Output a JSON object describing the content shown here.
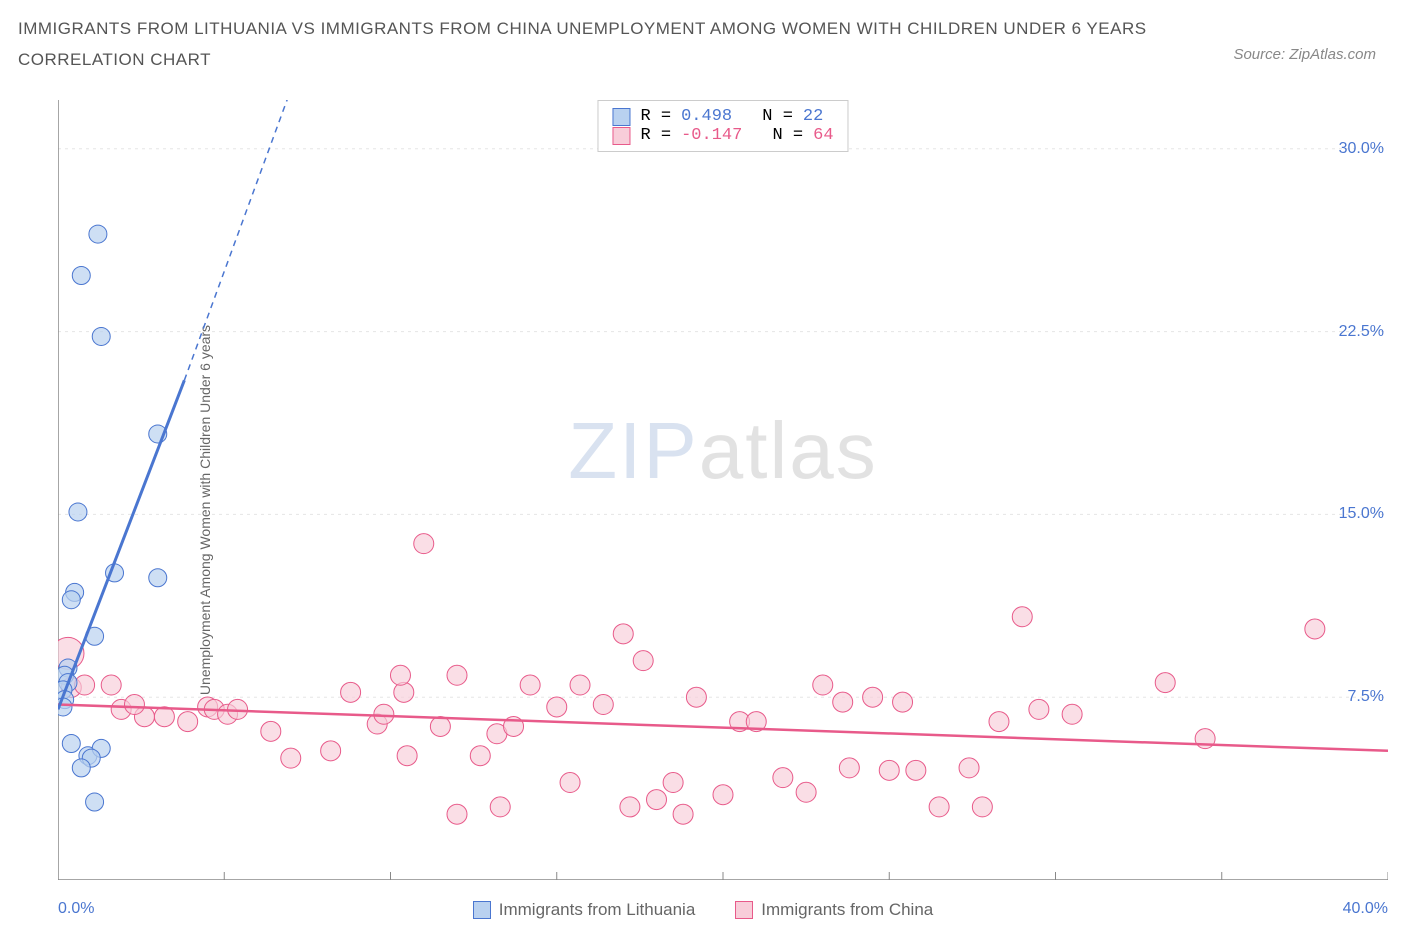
{
  "title_line1": "IMMIGRANTS FROM LITHUANIA VS IMMIGRANTS FROM CHINA UNEMPLOYMENT AMONG WOMEN WITH CHILDREN UNDER 6 YEARS",
  "title_line2": "CORRELATION CHART",
  "source_label": "Source: ZipAtlas.com",
  "y_axis_label": "Unemployment Among Women with Children Under 6 years",
  "watermark_zip": "ZIP",
  "watermark_atlas": "atlas",
  "colors": {
    "series_a_fill": "#b9d1f0",
    "series_a_stroke": "#4a76d0",
    "series_b_fill": "#f8cdd9",
    "series_b_stroke": "#e85a8a",
    "grid": "#e5e5e5",
    "axis": "#888888",
    "text": "#555555",
    "tick_text": "#4a76d0"
  },
  "axes": {
    "x_min": 0.0,
    "x_max": 40.0,
    "y_min": 0.0,
    "y_max": 32.0,
    "x_origin_label": "0.0%",
    "x_max_label": "40.0%",
    "x_ticks": [
      5,
      10,
      15,
      20,
      25,
      30,
      35,
      40
    ],
    "y_ticks": [
      {
        "v": 7.5,
        "label": "7.5%"
      },
      {
        "v": 15.0,
        "label": "15.0%"
      },
      {
        "v": 22.5,
        "label": "22.5%"
      },
      {
        "v": 30.0,
        "label": "30.0%"
      }
    ]
  },
  "legend_top": {
    "rows": [
      {
        "swatch": "a",
        "r_label": "R =",
        "r_value": "0.498",
        "n_label": "N =",
        "n_value": "22"
      },
      {
        "swatch": "b",
        "r_label": "R =",
        "r_value": "-0.147",
        "n_label": "N =",
        "n_value": "64"
      }
    ]
  },
  "legend_bottom": {
    "items": [
      {
        "swatch": "a",
        "label": "Immigrants from Lithuania"
      },
      {
        "swatch": "b",
        "label": "Immigrants from China"
      }
    ]
  },
  "series_a": {
    "trend": {
      "x1": 0,
      "y1": 7.0,
      "x2": 3.8,
      "y2": 20.5,
      "dash_x2": 8.5,
      "dash_y2": 38.0
    },
    "points": [
      {
        "x": 1.2,
        "y": 26.5,
        "r": 9
      },
      {
        "x": 0.7,
        "y": 24.8,
        "r": 9
      },
      {
        "x": 1.3,
        "y": 22.3,
        "r": 9
      },
      {
        "x": 3.0,
        "y": 18.3,
        "r": 9
      },
      {
        "x": 0.6,
        "y": 15.1,
        "r": 9
      },
      {
        "x": 1.7,
        "y": 12.6,
        "r": 9
      },
      {
        "x": 3.0,
        "y": 12.4,
        "r": 9
      },
      {
        "x": 0.5,
        "y": 11.8,
        "r": 9
      },
      {
        "x": 0.4,
        "y": 11.5,
        "r": 9
      },
      {
        "x": 1.1,
        "y": 10.0,
        "r": 9
      },
      {
        "x": 0.3,
        "y": 8.7,
        "r": 9
      },
      {
        "x": 0.2,
        "y": 8.4,
        "r": 9
      },
      {
        "x": 0.3,
        "y": 8.1,
        "r": 9
      },
      {
        "x": 0.15,
        "y": 7.8,
        "r": 9
      },
      {
        "x": 0.2,
        "y": 7.4,
        "r": 9
      },
      {
        "x": 0.15,
        "y": 7.1,
        "r": 9
      },
      {
        "x": 0.4,
        "y": 5.6,
        "r": 9
      },
      {
        "x": 0.9,
        "y": 5.1,
        "r": 9
      },
      {
        "x": 1.3,
        "y": 5.4,
        "r": 9
      },
      {
        "x": 1.0,
        "y": 5.0,
        "r": 9
      },
      {
        "x": 0.7,
        "y": 4.6,
        "r": 9
      },
      {
        "x": 1.1,
        "y": 3.2,
        "r": 9
      }
    ]
  },
  "series_b": {
    "trend": {
      "x1": 0,
      "y1": 7.2,
      "x2": 40,
      "y2": 5.3
    },
    "points": [
      {
        "x": 0.3,
        "y": 9.3,
        "r": 16
      },
      {
        "x": 0.4,
        "y": 7.9,
        "r": 10
      },
      {
        "x": 0.8,
        "y": 8.0,
        "r": 10
      },
      {
        "x": 1.6,
        "y": 8.0,
        "r": 10
      },
      {
        "x": 1.9,
        "y": 7.0,
        "r": 10
      },
      {
        "x": 2.6,
        "y": 6.7,
        "r": 10
      },
      {
        "x": 2.3,
        "y": 7.2,
        "r": 10
      },
      {
        "x": 3.2,
        "y": 6.7,
        "r": 10
      },
      {
        "x": 3.9,
        "y": 6.5,
        "r": 10
      },
      {
        "x": 4.5,
        "y": 7.1,
        "r": 10
      },
      {
        "x": 4.7,
        "y": 7.0,
        "r": 10
      },
      {
        "x": 5.1,
        "y": 6.8,
        "r": 10
      },
      {
        "x": 5.4,
        "y": 7.0,
        "r": 10
      },
      {
        "x": 6.4,
        "y": 6.1,
        "r": 10
      },
      {
        "x": 7.0,
        "y": 5.0,
        "r": 10
      },
      {
        "x": 8.2,
        "y": 5.3,
        "r": 10
      },
      {
        "x": 8.8,
        "y": 7.7,
        "r": 10
      },
      {
        "x": 9.6,
        "y": 6.4,
        "r": 10
      },
      {
        "x": 9.8,
        "y": 6.8,
        "r": 10
      },
      {
        "x": 10.4,
        "y": 7.7,
        "r": 10
      },
      {
        "x": 10.3,
        "y": 8.4,
        "r": 10
      },
      {
        "x": 10.5,
        "y": 5.1,
        "r": 10
      },
      {
        "x": 11.5,
        "y": 6.3,
        "r": 10
      },
      {
        "x": 11.0,
        "y": 13.8,
        "r": 10
      },
      {
        "x": 12.0,
        "y": 8.4,
        "r": 10
      },
      {
        "x": 12.0,
        "y": 2.7,
        "r": 10
      },
      {
        "x": 12.7,
        "y": 5.1,
        "r": 10
      },
      {
        "x": 13.2,
        "y": 6.0,
        "r": 10
      },
      {
        "x": 13.7,
        "y": 6.3,
        "r": 10
      },
      {
        "x": 13.3,
        "y": 3.0,
        "r": 10
      },
      {
        "x": 14.2,
        "y": 8.0,
        "r": 10
      },
      {
        "x": 15.0,
        "y": 7.1,
        "r": 10
      },
      {
        "x": 15.4,
        "y": 4.0,
        "r": 10
      },
      {
        "x": 15.7,
        "y": 8.0,
        "r": 10
      },
      {
        "x": 16.4,
        "y": 7.2,
        "r": 10
      },
      {
        "x": 17.0,
        "y": 10.1,
        "r": 10
      },
      {
        "x": 17.2,
        "y": 3.0,
        "r": 10
      },
      {
        "x": 17.6,
        "y": 9.0,
        "r": 10
      },
      {
        "x": 18.0,
        "y": 3.3,
        "r": 10
      },
      {
        "x": 18.5,
        "y": 4.0,
        "r": 10
      },
      {
        "x": 18.8,
        "y": 2.7,
        "r": 10
      },
      {
        "x": 19.2,
        "y": 7.5,
        "r": 10
      },
      {
        "x": 20.5,
        "y": 6.5,
        "r": 10
      },
      {
        "x": 20.0,
        "y": 3.5,
        "r": 10
      },
      {
        "x": 21.0,
        "y": 6.5,
        "r": 10
      },
      {
        "x": 21.8,
        "y": 4.2,
        "r": 10
      },
      {
        "x": 22.5,
        "y": 3.6,
        "r": 10
      },
      {
        "x": 23.0,
        "y": 8.0,
        "r": 10
      },
      {
        "x": 23.6,
        "y": 7.3,
        "r": 10
      },
      {
        "x": 23.8,
        "y": 4.6,
        "r": 10
      },
      {
        "x": 25.0,
        "y": 4.5,
        "r": 10
      },
      {
        "x": 25.4,
        "y": 7.3,
        "r": 10
      },
      {
        "x": 25.8,
        "y": 4.5,
        "r": 10
      },
      {
        "x": 26.5,
        "y": 3.0,
        "r": 10
      },
      {
        "x": 27.4,
        "y": 4.6,
        "r": 10
      },
      {
        "x": 27.8,
        "y": 3.0,
        "r": 10
      },
      {
        "x": 28.3,
        "y": 6.5,
        "r": 10
      },
      {
        "x": 29.0,
        "y": 10.8,
        "r": 10
      },
      {
        "x": 30.5,
        "y": 6.8,
        "r": 10
      },
      {
        "x": 33.3,
        "y": 8.1,
        "r": 10
      },
      {
        "x": 34.5,
        "y": 5.8,
        "r": 10
      },
      {
        "x": 37.8,
        "y": 10.3,
        "r": 10
      },
      {
        "x": 29.5,
        "y": 7.0,
        "r": 10
      },
      {
        "x": 24.5,
        "y": 7.5,
        "r": 10
      }
    ]
  }
}
